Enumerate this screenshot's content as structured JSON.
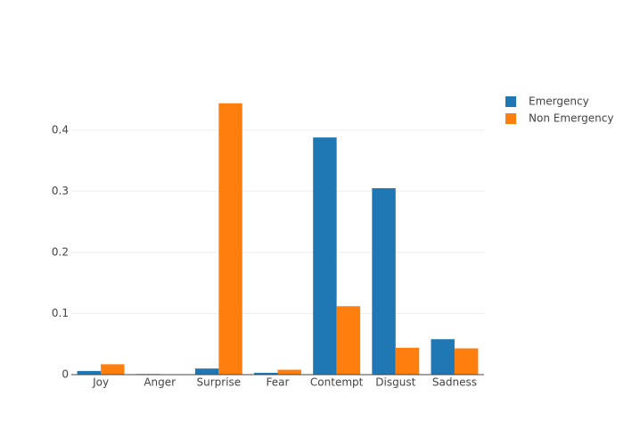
{
  "chart_data": {
    "type": "bar",
    "categories": [
      "Joy",
      "Anger",
      "Surprise",
      "Fear",
      "Contempt",
      "Disgust",
      "Sadness"
    ],
    "series": [
      {
        "name": "Emergency",
        "color": "#1f77b4",
        "values": [
          0.006,
          0.001,
          0.01,
          0.003,
          0.388,
          0.305,
          0.058
        ]
      },
      {
        "name": "Non Emergency",
        "color": "#ff7f0e",
        "values": [
          0.017,
          0.0005,
          0.444,
          0.008,
          0.112,
          0.044,
          0.043
        ]
      }
    ],
    "ylim": [
      0,
      0.467
    ],
    "yticks": [
      0,
      0.1,
      0.2,
      0.3,
      0.4
    ],
    "grid": true,
    "legend": "right"
  }
}
